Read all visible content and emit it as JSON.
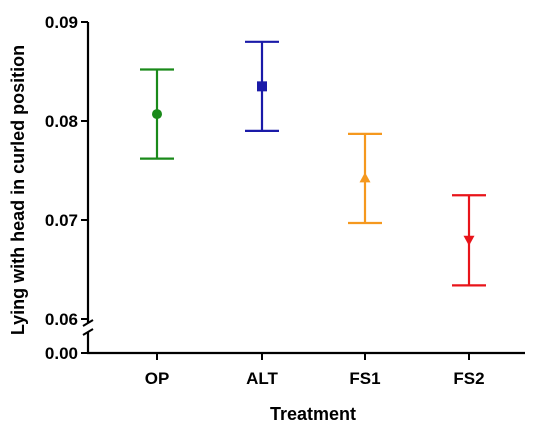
{
  "chart_data": {
    "type": "scatter",
    "title": "",
    "xlabel": "Treatment",
    "ylabel": "Lying with head in curled position",
    "ylim": [
      0.06,
      0.09
    ],
    "y_break": {
      "below": 0.06,
      "base": 0.0
    },
    "yticks": [
      0.06,
      0.07,
      0.08,
      0.09
    ],
    "ytick_labels": [
      "0.06",
      "0.07",
      "0.08",
      "0.09"
    ],
    "ybase_label": "0.00",
    "grid": false,
    "legend": "none",
    "categories": [
      "OP",
      "ALT",
      "FS1",
      "FS2"
    ],
    "series": [
      {
        "category": "OP",
        "value": 0.0807,
        "lower": 0.0762,
        "upper": 0.0852,
        "marker": "circle",
        "color": "#1a8a1a"
      },
      {
        "category": "ALT",
        "value": 0.0835,
        "lower": 0.079,
        "upper": 0.088,
        "marker": "square",
        "color": "#1a1aa8"
      },
      {
        "category": "FS1",
        "value": 0.0742,
        "lower": 0.0697,
        "upper": 0.0787,
        "marker": "triangle-up",
        "color": "#f5981e"
      },
      {
        "category": "FS2",
        "value": 0.068,
        "lower": 0.0634,
        "upper": 0.0725,
        "marker": "triangle-down",
        "color": "#e8141a"
      }
    ]
  }
}
